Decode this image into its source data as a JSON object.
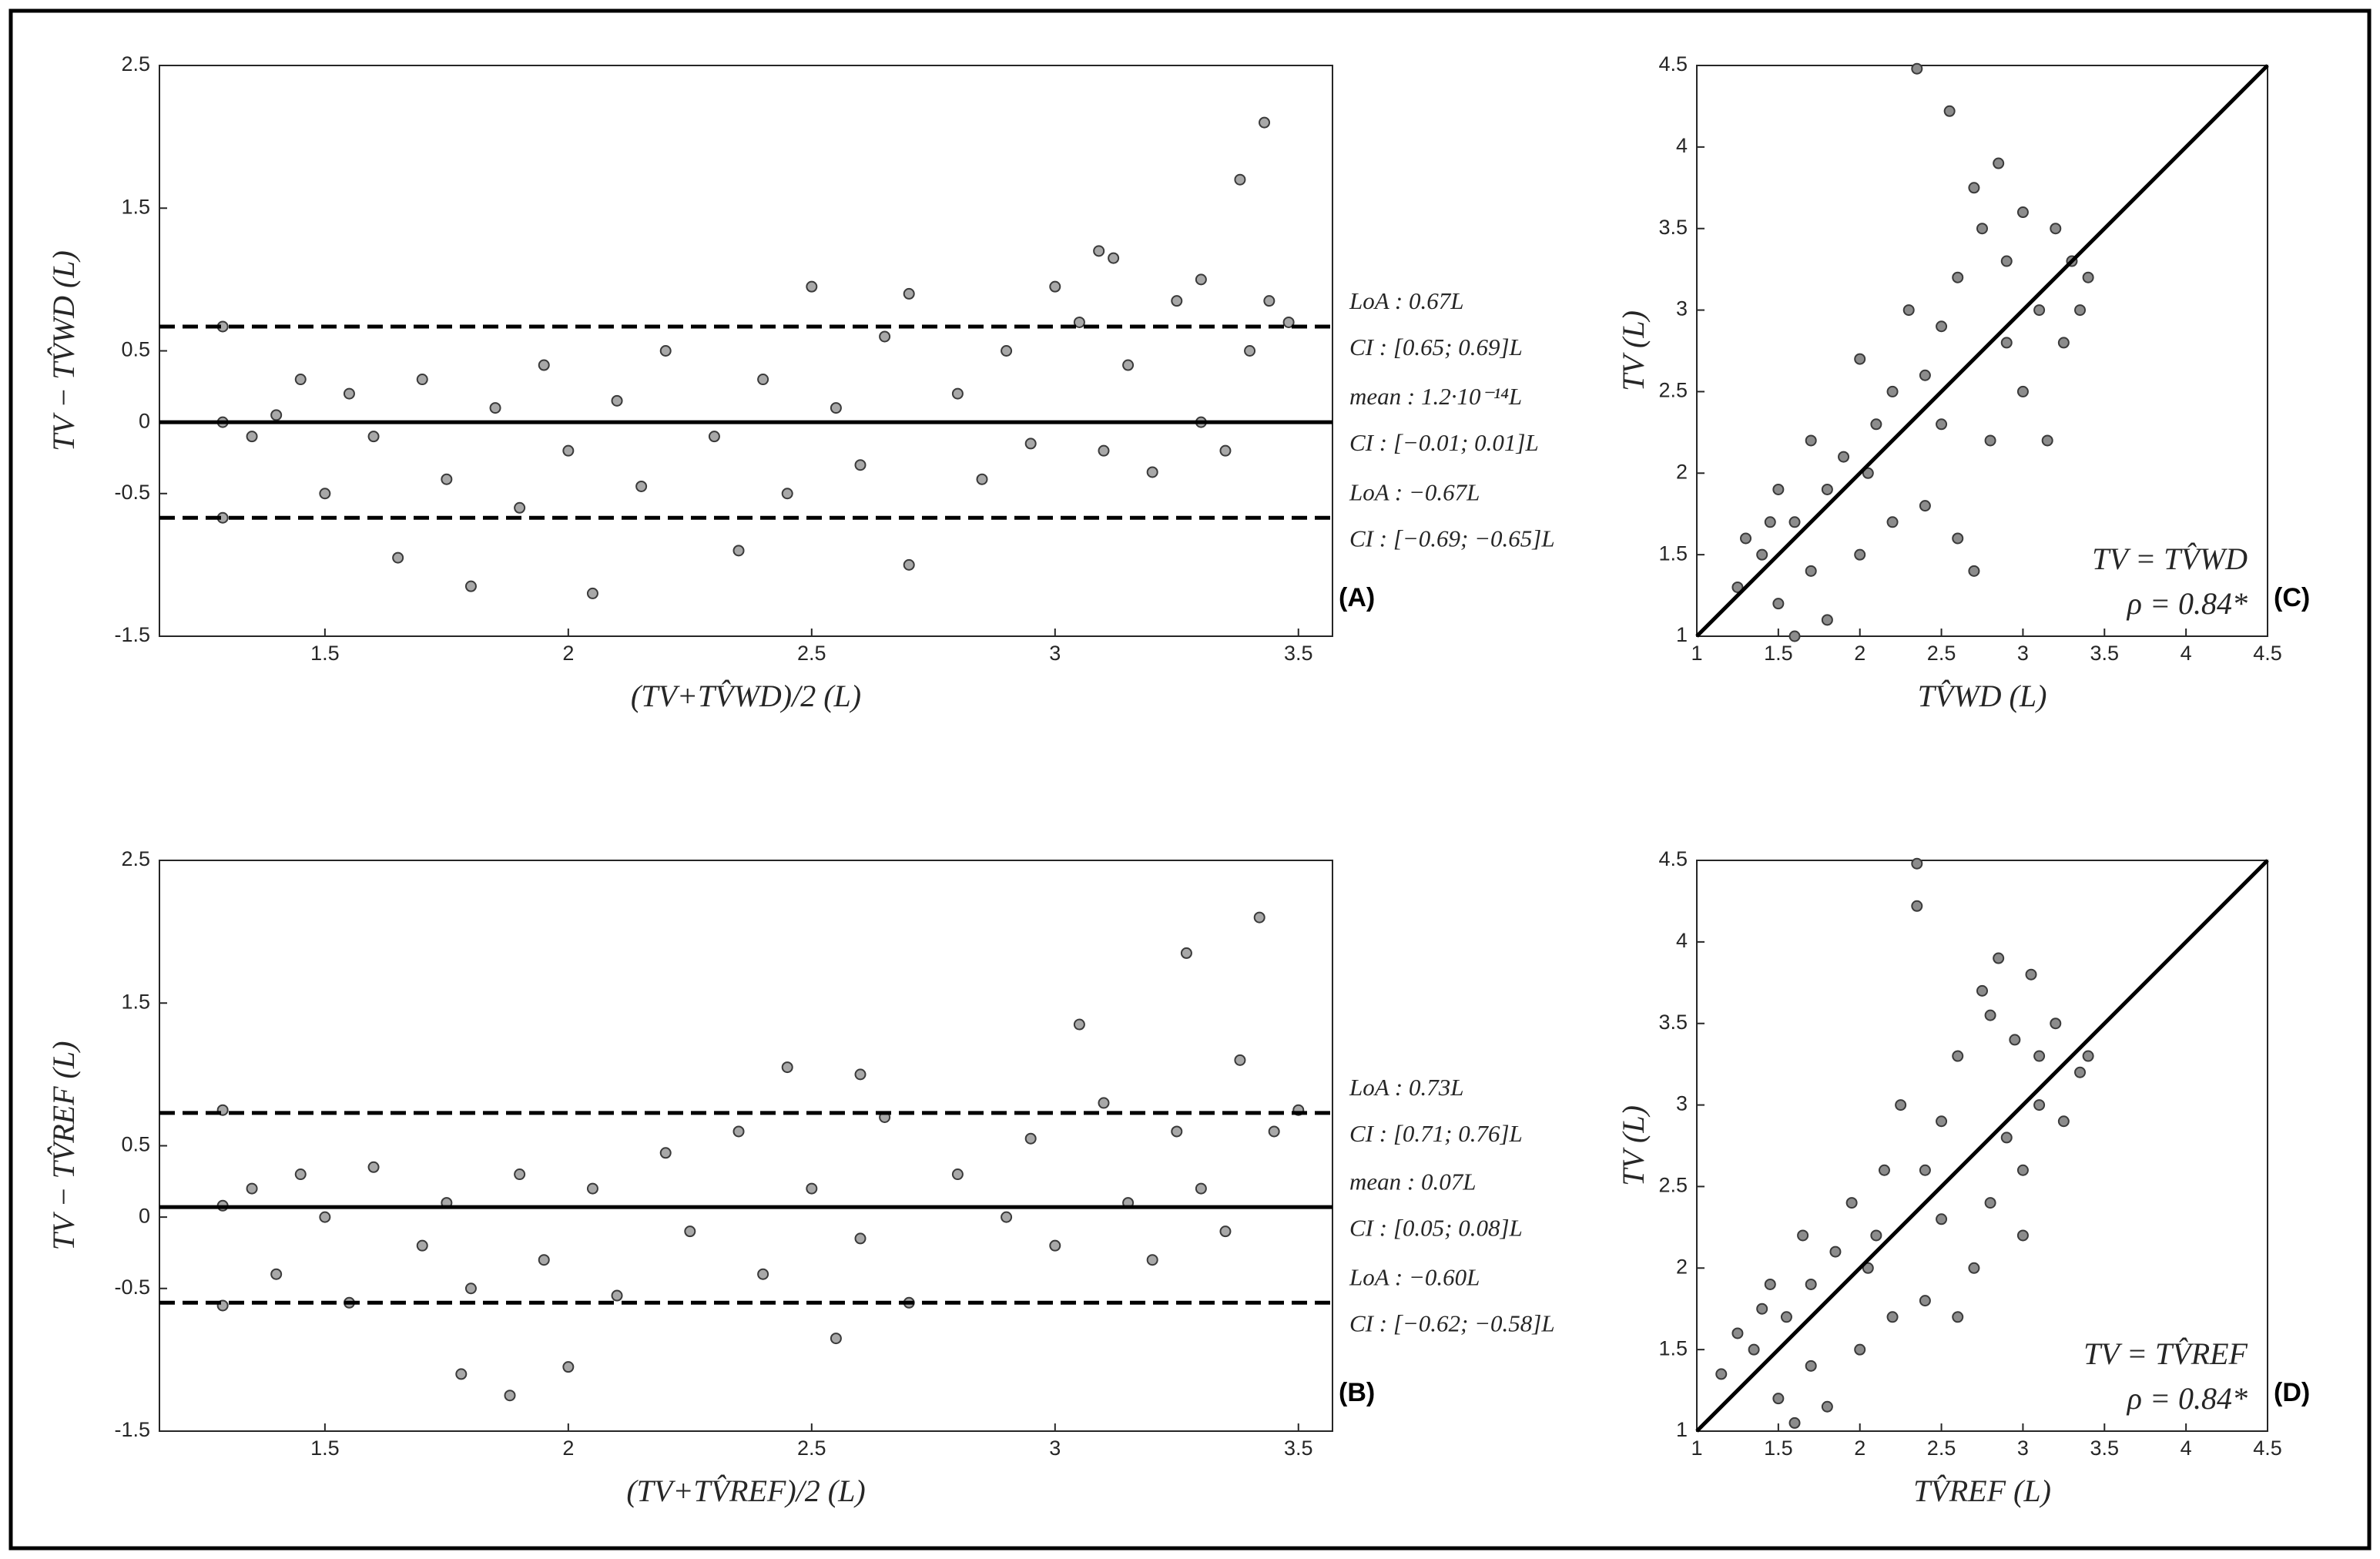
{
  "chart_data": [
    {
      "type": "bland-altman",
      "panel_label": "(A)",
      "xlabel": "(TV+TV̂WD)/2 (L)",
      "ylabel": "TV − TV̂WD (L)",
      "xlim": [
        1.16,
        3.57
      ],
      "ylim": [
        -1.5,
        2.5
      ],
      "xticks": [
        1.5,
        2,
        2.5,
        3,
        3.5
      ],
      "yticks": [
        -1.5,
        -0.5,
        0,
        0.5,
        1.5,
        2.5
      ],
      "color": "#a8a8a8",
      "x": [
        1.29,
        1.29,
        1.29,
        3.43,
        3.38,
        3.09,
        3.12,
        2.05,
        1.8,
        2.5,
        2.7,
        3.3,
        3.44,
        3.0,
        1.45,
        1.5,
        1.55,
        1.6,
        1.65,
        1.7,
        1.75,
        1.85,
        1.9,
        1.95,
        2.0,
        2.1,
        2.15,
        2.2,
        2.3,
        2.35,
        2.4,
        2.45,
        2.55,
        2.6,
        2.65,
        2.7,
        2.8,
        2.85,
        2.9,
        2.95,
        3.05,
        3.1,
        3.15,
        3.2,
        3.25,
        3.3,
        3.35,
        3.4,
        3.48,
        1.35,
        1.4
      ],
      "y": [
        0.67,
        0,
        -0.67,
        2.1,
        1.7,
        1.2,
        1.15,
        -1.2,
        -1.15,
        0.95,
        0.9,
        1.0,
        0.85,
        0.95,
        0.3,
        -0.5,
        0.2,
        -0.1,
        -0.95,
        0.3,
        -0.4,
        0.1,
        -0.6,
        0.4,
        -0.2,
        0.15,
        -0.45,
        0.5,
        -0.1,
        -0.9,
        0.3,
        -0.5,
        0.1,
        -0.3,
        0.6,
        -1.0,
        0.2,
        -0.4,
        0.5,
        -0.15,
        0.7,
        -0.2,
        0.4,
        -0.35,
        0.85,
        0.0,
        -0.2,
        0.5,
        0.7,
        -0.1,
        0.05
      ],
      "hlines": [
        {
          "value": 0.67,
          "style": "dashed",
          "label": "LoA : 0.67L",
          "ci": "CI : [0.65; 0.69]L"
        },
        {
          "value": 1.2e-14,
          "style": "solid",
          "label": "mean : 1.2·10⁻¹⁴L",
          "ci": "CI : [−0.01; 0.01]L"
        },
        {
          "value": -0.67,
          "style": "dashed",
          "label": "LoA : −0.67L",
          "ci": "CI : [−0.69; −0.65]L"
        }
      ]
    },
    {
      "type": "correlation",
      "panel_label": "(C)",
      "xlabel": "TV̂WD (L)",
      "ylabel": "TV (L)",
      "xlim": [
        1,
        4.5
      ],
      "ylim": [
        1,
        4.5
      ],
      "xticks": [
        1,
        1.5,
        2,
        2.5,
        3,
        3.5,
        4,
        4.5
      ],
      "yticks": [
        1,
        1.5,
        2,
        2.5,
        3,
        3.5,
        4,
        4.5
      ],
      "color": "#8c8c8c",
      "identity_line": true,
      "equation": "TV = TV̂WD",
      "rho_label": "ρ = 0.84*",
      "x": [
        2.35,
        2.55,
        2.85,
        2.7,
        3.0,
        3.2,
        3.3,
        3.35,
        3.15,
        2.9,
        2.6,
        2.5,
        2.4,
        2.3,
        2.2,
        2.1,
        2.0,
        1.9,
        1.8,
        1.7,
        1.6,
        1.5,
        1.4,
        1.3,
        1.25,
        1.5,
        1.6,
        1.8,
        2.0,
        2.2,
        2.4,
        2.6,
        2.7,
        2.8,
        3.0,
        3.1,
        3.25,
        2.9,
        2.75,
        1.7,
        1.45,
        2.05,
        2.5,
        3.4
      ],
      "y": [
        4.48,
        4.22,
        3.9,
        3.75,
        3.6,
        3.5,
        3.3,
        3.0,
        2.2,
        2.8,
        3.2,
        2.9,
        2.6,
        3.0,
        2.5,
        2.3,
        2.7,
        2.1,
        1.9,
        2.2,
        1.7,
        1.9,
        1.5,
        1.6,
        1.3,
        1.2,
        1.0,
        1.1,
        1.5,
        1.7,
        1.8,
        1.6,
        1.4,
        2.2,
        2.5,
        3.0,
        2.8,
        3.3,
        3.5,
        1.4,
        1.7,
        2.0,
        2.3,
        3.2
      ]
    },
    {
      "type": "bland-altman",
      "panel_label": "(B)",
      "xlabel": "(TV+TV̂REF)/2 (L)",
      "ylabel": "TV − TV̂REF (L)",
      "xlim": [
        1.16,
        3.57
      ],
      "ylim": [
        -1.5,
        2.5
      ],
      "xticks": [
        1.5,
        2,
        2.5,
        3,
        3.5
      ],
      "yticks": [
        -1.5,
        -0.5,
        0,
        0.5,
        1.5,
        2.5
      ],
      "color": "#a8a8a8",
      "x": [
        1.29,
        1.29,
        1.29,
        3.42,
        3.27,
        3.05,
        2.45,
        2.6,
        3.38,
        1.78,
        1.88,
        2.0,
        2.55,
        1.35,
        1.4,
        1.45,
        1.5,
        1.55,
        1.6,
        1.7,
        1.75,
        1.8,
        1.9,
        1.95,
        2.05,
        2.1,
        2.2,
        2.25,
        2.35,
        2.4,
        2.5,
        2.6,
        2.65,
        2.7,
        2.8,
        2.9,
        2.95,
        3.0,
        3.1,
        3.15,
        3.2,
        3.25,
        3.3,
        3.35,
        3.45,
        3.5
      ],
      "y": [
        0.75,
        0.08,
        -0.62,
        2.1,
        1.85,
        1.35,
        1.05,
        1.0,
        1.1,
        -1.1,
        -1.25,
        -1.05,
        -0.85,
        0.2,
        -0.4,
        0.3,
        0.0,
        -0.6,
        0.35,
        -0.2,
        0.1,
        -0.5,
        0.3,
        -0.3,
        0.2,
        -0.55,
        0.45,
        -0.1,
        0.6,
        -0.4,
        0.2,
        -0.15,
        0.7,
        -0.6,
        0.3,
        0.0,
        0.55,
        -0.2,
        0.8,
        0.1,
        -0.3,
        0.6,
        0.2,
        -0.1,
        0.6,
        0.75
      ],
      "hlines": [
        {
          "value": 0.73,
          "style": "dashed",
          "label": "LoA : 0.73L",
          "ci": "CI : [0.71; 0.76]L"
        },
        {
          "value": 0.07,
          "style": "solid",
          "label": "mean : 0.07L",
          "ci": "CI : [0.05; 0.08]L"
        },
        {
          "value": -0.6,
          "style": "dashed",
          "label": "LoA : −0.60L",
          "ci": "CI : [−0.62; −0.58]L"
        }
      ]
    },
    {
      "type": "correlation",
      "panel_label": "(D)",
      "xlabel": "TV̂REF (L)",
      "ylabel": "TV (L)",
      "xlim": [
        1,
        4.5
      ],
      "ylim": [
        1,
        4.5
      ],
      "xticks": [
        1,
        1.5,
        2,
        2.5,
        3,
        3.5,
        4,
        4.5
      ],
      "yticks": [
        1,
        1.5,
        2,
        2.5,
        3,
        3.5,
        4,
        4.5
      ],
      "color": "#8c8c8c",
      "identity_line": true,
      "equation": "TV = TV̂REF",
      "rho_label": "ρ = 0.84*",
      "x": [
        2.35,
        2.35,
        2.85,
        2.75,
        3.05,
        3.2,
        3.35,
        3.1,
        3.0,
        2.9,
        2.6,
        2.5,
        2.4,
        2.25,
        2.15,
        2.1,
        1.95,
        1.85,
        1.7,
        1.65,
        1.55,
        1.45,
        1.35,
        1.25,
        1.15,
        1.5,
        1.6,
        1.8,
        2.0,
        2.2,
        2.4,
        2.6,
        2.7,
        2.8,
        3.0,
        3.1,
        3.25,
        2.95,
        2.8,
        1.7,
        1.4,
        2.05,
        2.5,
        3.4
      ],
      "y": [
        4.48,
        4.22,
        3.9,
        3.7,
        3.8,
        3.5,
        3.2,
        3.0,
        2.2,
        2.8,
        3.3,
        2.9,
        2.6,
        3.0,
        2.6,
        2.2,
        2.4,
        2.1,
        1.9,
        2.2,
        1.7,
        1.9,
        1.5,
        1.6,
        1.35,
        1.2,
        1.05,
        1.15,
        1.5,
        1.7,
        1.8,
        1.7,
        2.0,
        2.4,
        2.6,
        3.3,
        2.9,
        3.4,
        3.55,
        1.4,
        1.75,
        2.0,
        2.3,
        3.3
      ]
    }
  ]
}
